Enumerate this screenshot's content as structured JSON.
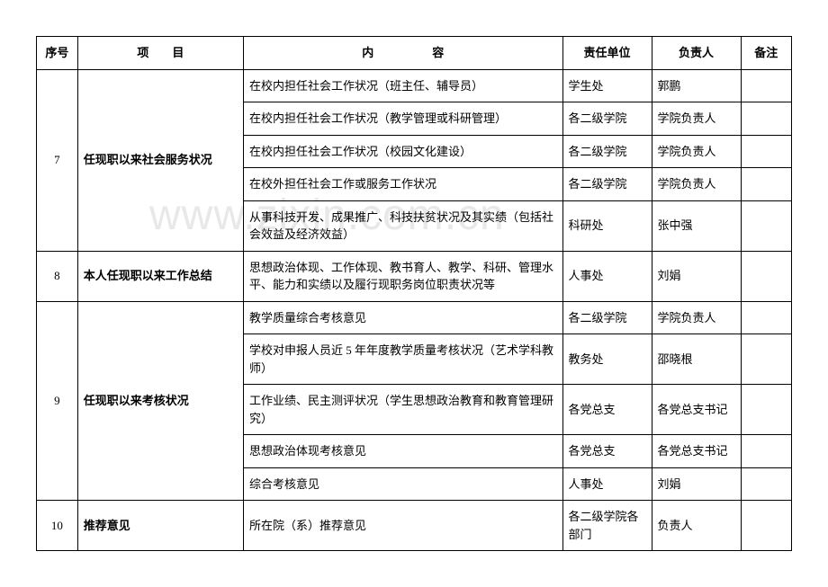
{
  "watermark": "www.zixin.com.cn",
  "headers": {
    "seq": "序号",
    "item": "项　　目",
    "content": "内　　　　　容",
    "unit": "责任单位",
    "person": "负责人",
    "notes": "备注"
  },
  "groups": [
    {
      "seq": "7",
      "item": "任现职以来社会服务状况",
      "rows": [
        {
          "content": "在校内担任社会工作状况（班主任、辅导员）",
          "unit": "学生处",
          "person": "郭鹏",
          "notes": ""
        },
        {
          "content": "在校内担任社会工作状况（教学管理或科研管理）",
          "unit": "各二级学院",
          "person": "学院负责人",
          "notes": ""
        },
        {
          "content": "在校内担任社会工作状况（校园文化建设）",
          "unit": "各二级学院",
          "person": "学院负责人",
          "notes": ""
        },
        {
          "content": "在校外担任社会工作或服务工作状况",
          "unit": "各二级学院",
          "person": "学院负责人",
          "notes": ""
        },
        {
          "content": "从事科技开发、成果推广、科技扶贫状况及其实绩（包括社会效益及经济效益）",
          "unit": "科研处",
          "person": "张中强",
          "notes": ""
        }
      ]
    },
    {
      "seq": "8",
      "item": "本人任现职以来工作总结",
      "rows": [
        {
          "content": "思想政治体现、工作体现、教书育人、教学、科研、管理水平、能力和实绩以及履行现职务岗位职责状况等",
          "unit": "人事处",
          "person": "刘娟",
          "notes": ""
        }
      ]
    },
    {
      "seq": "9",
      "item": "任现职以来考核状况",
      "rows": [
        {
          "content": "教学质量综合考核意见",
          "unit": "各二级学院",
          "person": "学院负责人",
          "notes": ""
        },
        {
          "content": "学校对申报人员近 5 年年度教学质量考核状况（艺术学科教师）",
          "unit": "教务处",
          "person": "邵晓根",
          "notes": ""
        },
        {
          "content": "工作业绩、民主测评状况（学生思想政治教育和教育管理研究）",
          "unit": "各党总支",
          "person": "各党总支书记",
          "notes": ""
        },
        {
          "content": "思想政治体现考核意见",
          "unit": "各党总支",
          "person": "各党总支书记",
          "notes": ""
        },
        {
          "content": "综合考核意见",
          "unit": "人事处",
          "person": "刘娟",
          "notes": ""
        }
      ]
    },
    {
      "seq": "10",
      "item": "推荐意见",
      "rows": [
        {
          "content": "所在院（系）推荐意见",
          "unit": "各二级学院各部门",
          "person": "负责人",
          "notes": ""
        }
      ]
    }
  ]
}
